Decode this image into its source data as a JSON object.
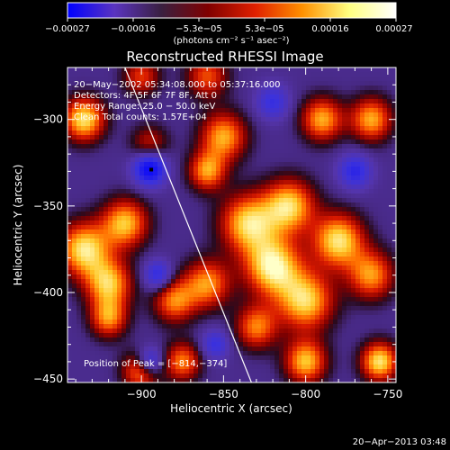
{
  "chart_data": {
    "type": "heatmap",
    "title": "Reconstructed RHESSI Image",
    "xlabel": "Heliocentric X (arcsec)",
    "ylabel": "Heliocentric Y (arcsec)",
    "xlim": [
      -945,
      -745
    ],
    "ylim": [
      -452,
      -270
    ],
    "x_ticks": [
      {
        "value": -900,
        "label": "−900"
      },
      {
        "value": -850,
        "label": "−850"
      },
      {
        "value": -800,
        "label": "−800"
      },
      {
        "value": -750,
        "label": "−750"
      }
    ],
    "y_ticks": [
      {
        "value": -300,
        "label": "−300"
      },
      {
        "value": -350,
        "label": "−350"
      },
      {
        "value": -400,
        "label": "−400"
      },
      {
        "value": -450,
        "label": "−450"
      }
    ],
    "colorbar": {
      "min": -0.00027,
      "max": 0.00027,
      "tick_labels": [
        "−0.00027",
        "−0.00016",
        "−5.3e−05",
        "5.3e−05",
        "0.00016",
        "0.00027"
      ],
      "units_label": "(photons cm⁻² s⁻¹ asec⁻²)",
      "colors": [
        "#0000ff",
        "#5a34c0",
        "#3a2040",
        "#800000",
        "#e02000",
        "#ff9000",
        "#ffff80",
        "#ffffff"
      ]
    },
    "info_lines": [
      "20−May−2002 05:34:08.000 to 05:37:16.000",
      "Detectors: 4F 5F 6F 7F 8F, Att 0",
      "Energy Range: 25.0 − 50.0 keV",
      "Clean    Total counts: 1.57E+04"
    ],
    "peak": {
      "x": -814,
      "y": -374,
      "label": "Position of Peak = [−814,−374]"
    },
    "limb_line": [
      {
        "x": -910,
        "y": -270
      },
      {
        "x": -833,
        "y": -452
      }
    ],
    "marker": {
      "x": -894,
      "y": -329
    },
    "hot_sources": [
      {
        "x": -820,
        "y": -385,
        "v": 1.0,
        "s": 12
      },
      {
        "x": -835,
        "y": -360,
        "v": 0.9,
        "s": 12
      },
      {
        "x": -810,
        "y": -350,
        "v": 0.9,
        "s": 11
      },
      {
        "x": -800,
        "y": -405,
        "v": 0.9,
        "s": 12
      },
      {
        "x": -780,
        "y": -370,
        "v": 0.95,
        "s": 11
      },
      {
        "x": -790,
        "y": -300,
        "v": 0.8,
        "s": 9
      },
      {
        "x": -760,
        "y": -300,
        "v": 0.8,
        "s": 9
      },
      {
        "x": -760,
        "y": -390,
        "v": 0.75,
        "s": 10
      },
      {
        "x": -755,
        "y": -440,
        "v": 0.95,
        "s": 8
      },
      {
        "x": -860,
        "y": -395,
        "v": 0.75,
        "s": 10
      },
      {
        "x": -880,
        "y": -405,
        "v": 0.7,
        "s": 9
      },
      {
        "x": -850,
        "y": -310,
        "v": 0.8,
        "s": 10
      },
      {
        "x": -860,
        "y": -330,
        "v": 0.75,
        "s": 8
      },
      {
        "x": -935,
        "y": -300,
        "v": 0.95,
        "s": 9
      },
      {
        "x": -935,
        "y": -375,
        "v": 0.95,
        "s": 11
      },
      {
        "x": -910,
        "y": -360,
        "v": 0.85,
        "s": 10
      },
      {
        "x": -920,
        "y": -395,
        "v": 0.85,
        "s": 10
      },
      {
        "x": -920,
        "y": -415,
        "v": 0.7,
        "s": 8
      },
      {
        "x": -900,
        "y": -445,
        "v": 0.8,
        "s": 8
      },
      {
        "x": -875,
        "y": -440,
        "v": 0.7,
        "s": 8
      },
      {
        "x": -800,
        "y": -440,
        "v": 0.85,
        "s": 9
      },
      {
        "x": -830,
        "y": -420,
        "v": 0.7,
        "s": 9
      },
      {
        "x": -860,
        "y": -275,
        "v": 0.6,
        "s": 9
      },
      {
        "x": -900,
        "y": -275,
        "v": 0.55,
        "s": 8
      },
      {
        "x": -895,
        "y": -315,
        "v": 0.5,
        "s": 8
      }
    ],
    "cold_sources": [
      {
        "x": -895,
        "y": -328,
        "v": 1.0,
        "s": 7
      },
      {
        "x": -895,
        "y": -440,
        "v": 0.8,
        "s": 6
      },
      {
        "x": -890,
        "y": -390,
        "v": 0.6,
        "s": 6
      },
      {
        "x": -770,
        "y": -330,
        "v": 0.6,
        "s": 7
      },
      {
        "x": -820,
        "y": -290,
        "v": 0.5,
        "s": 7
      },
      {
        "x": -855,
        "y": -430,
        "v": 0.5,
        "s": 6
      }
    ]
  },
  "timestamp": "20−Apr−2013 03:48"
}
